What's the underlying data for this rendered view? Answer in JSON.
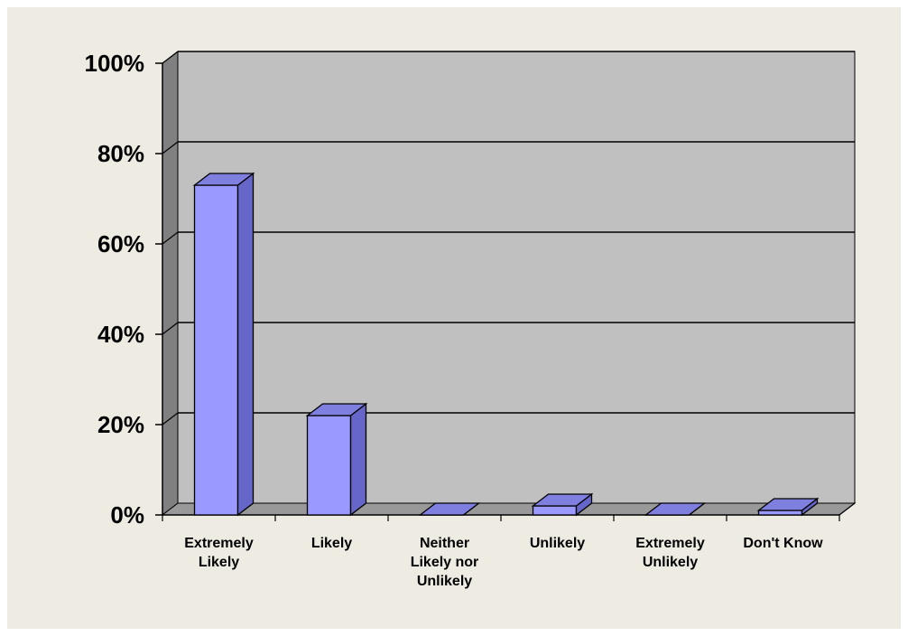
{
  "chart_data": {
    "type": "bar",
    "title": "",
    "xlabel": "",
    "ylabel": "",
    "categories": [
      [
        "Extremely",
        "Likely"
      ],
      [
        "Likely"
      ],
      [
        "Neither",
        "Likely nor",
        "Unlikely"
      ],
      [
        "Unlikely"
      ],
      [
        "Extremely",
        "Unlikely"
      ],
      [
        "Don't Know"
      ]
    ],
    "values": [
      73,
      22,
      0,
      2,
      0,
      1
    ],
    "ylim": [
      0,
      100
    ],
    "yticks": [
      0,
      20,
      40,
      60,
      80,
      100
    ],
    "ytick_labels": [
      "0%",
      "20%",
      "40%",
      "60%",
      "80%",
      "100%"
    ],
    "grid": true,
    "legend": "none",
    "colors": {
      "bar_front": "#9999ff",
      "bar_top": "#7f7fe0",
      "bar_side": "#6666c8",
      "plot_back": "#c0c0c0",
      "plot_wall": "#808080",
      "plot_floor": "#999999",
      "background": "#eeebe2"
    }
  }
}
